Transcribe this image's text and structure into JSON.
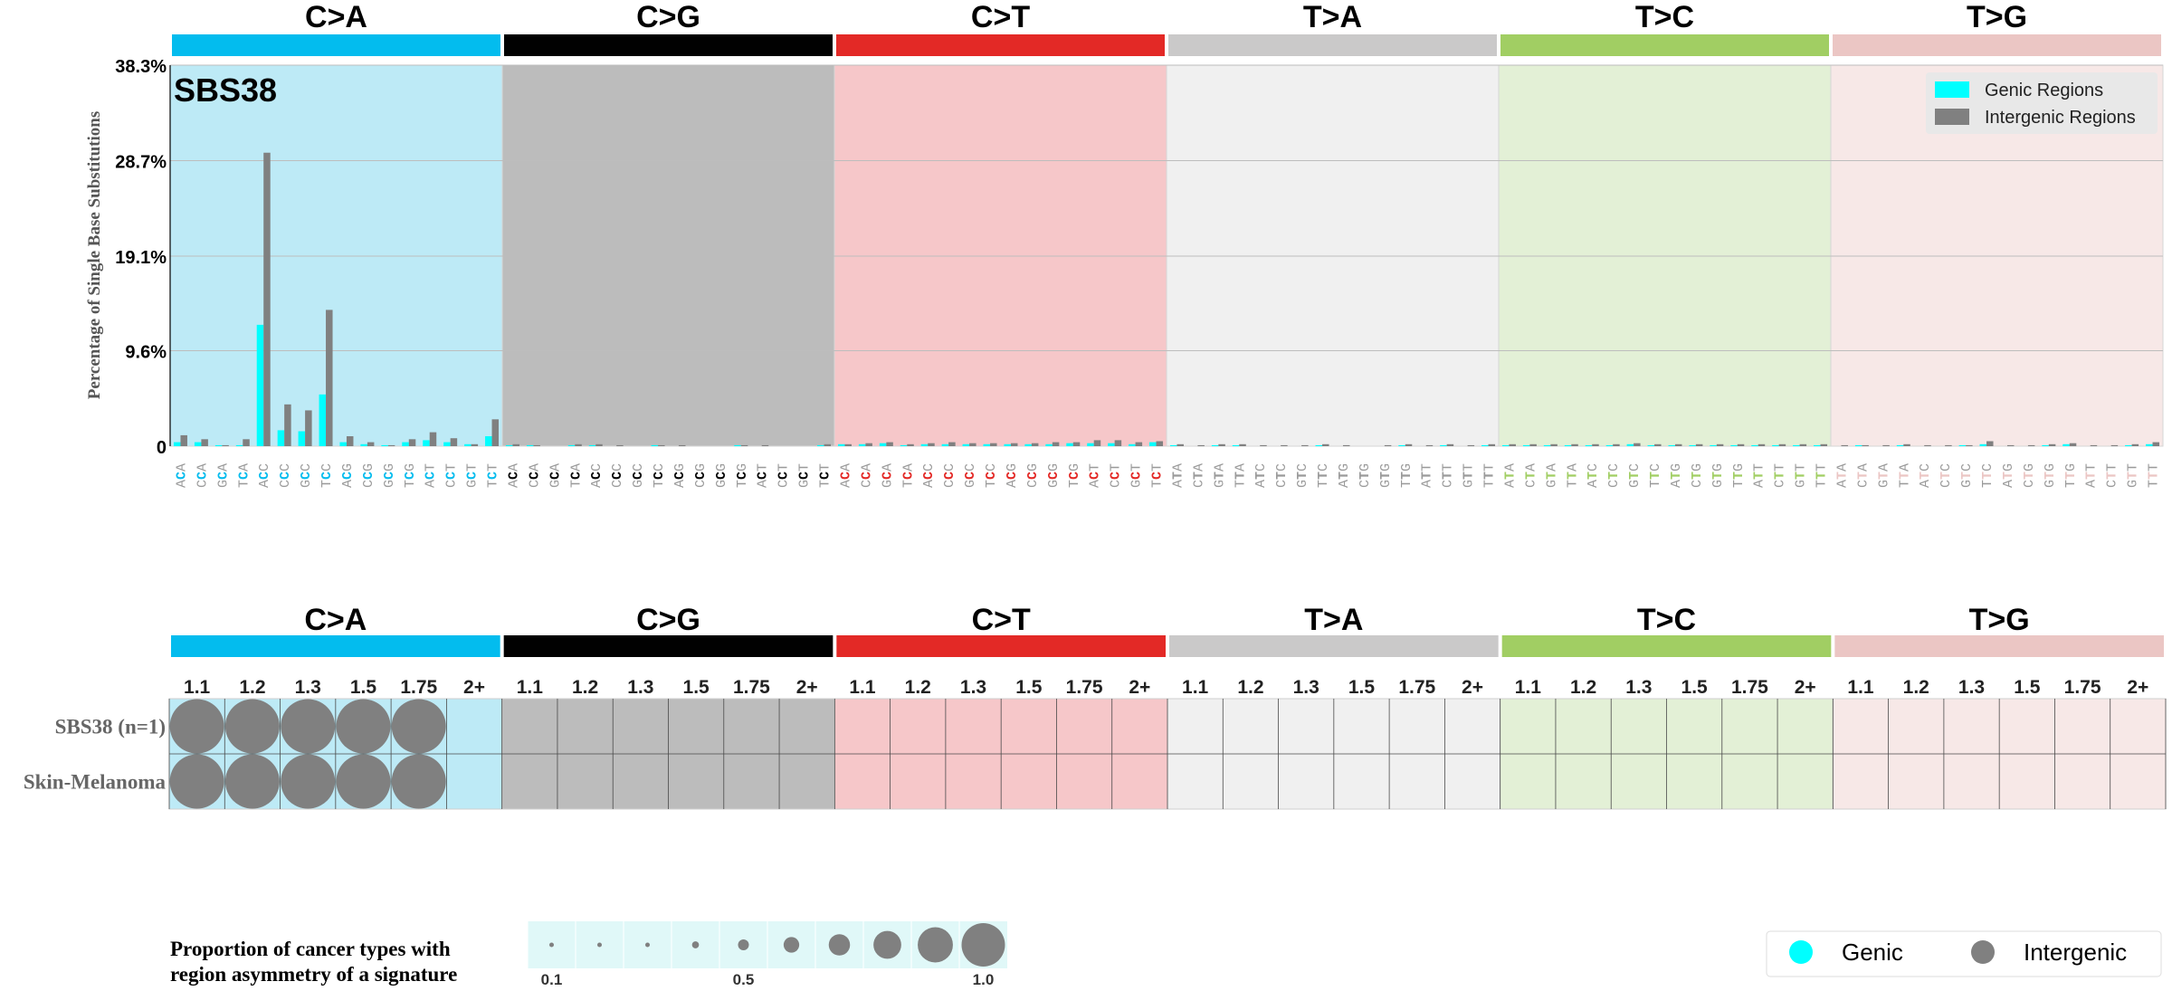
{
  "chart_data": [
    {
      "type": "bar",
      "title": "SBS38",
      "ylabel": "Percentage of Single Base Substitutions",
      "ylim": [
        0,
        38.3
      ],
      "ytick_labels": [
        "0",
        "9.6%",
        "19.1%",
        "28.7%",
        "38.3%"
      ],
      "ytick_values": [
        0,
        9.6,
        19.1,
        28.7,
        38.3
      ],
      "grid": true,
      "legend_position": "top-right",
      "mutation_types": [
        "C>A",
        "C>G",
        "C>T",
        "T>A",
        "T>C",
        "T>G"
      ],
      "mutation_colors": [
        "#03bcee",
        "#010101",
        "#e32926",
        "#cac9c9",
        "#a1ce63",
        "#ebc6c4"
      ],
      "panel_backgrounds": [
        "#bdeaf6",
        "#bcbcbc",
        "#f6c7c9",
        "#f0f0f0",
        "#e3f0d6",
        "#f7e8e7"
      ],
      "context_prefixes": [
        "AA",
        "AC",
        "AG",
        "AT",
        "CA",
        "CC",
        "CG",
        "CT",
        "GA",
        "GC",
        "GG",
        "GT",
        "TA",
        "TC",
        "TG",
        "TT"
      ],
      "series": [
        {
          "name": "Genic Regions",
          "color": "#00ffff",
          "values": [
            0.4,
            0.4,
            0.1,
            0.1,
            12.2,
            1.6,
            1.5,
            5.2,
            0.4,
            0.2,
            0.1,
            0.4,
            0.6,
            0.4,
            0.2,
            1.0,
            0.1,
            0.1,
            0.0,
            0.1,
            0.1,
            0.0,
            0.0,
            0.1,
            0.0,
            0.0,
            0.0,
            0.1,
            0.0,
            0.0,
            0.0,
            0.1,
            0.2,
            0.2,
            0.3,
            0.1,
            0.2,
            0.2,
            0.2,
            0.2,
            0.2,
            0.2,
            0.2,
            0.3,
            0.3,
            0.3,
            0.2,
            0.4,
            0.1,
            0.0,
            0.1,
            0.1,
            0.0,
            0.0,
            0.0,
            0.1,
            0.0,
            0.0,
            0.0,
            0.1,
            0.0,
            0.1,
            0.0,
            0.1,
            0.1,
            0.1,
            0.1,
            0.1,
            0.1,
            0.1,
            0.2,
            0.1,
            0.1,
            0.1,
            0.1,
            0.1,
            0.1,
            0.1,
            0.1,
            0.1,
            0.0,
            0.1,
            0.0,
            0.1,
            0.0,
            0.0,
            0.1,
            0.2,
            0.0,
            0.0,
            0.1,
            0.2,
            0.0,
            0.0,
            0.1,
            0.2
          ]
        },
        {
          "name": "Intergenic Regions",
          "color": "#808080",
          "values": [
            1.1,
            0.7,
            0.1,
            0.7,
            29.5,
            4.2,
            3.6,
            13.7,
            1.0,
            0.4,
            0.1,
            0.7,
            1.4,
            0.8,
            0.2,
            2.7,
            0.2,
            0.1,
            0.0,
            0.2,
            0.2,
            0.1,
            0.0,
            0.1,
            0.1,
            0.0,
            0.0,
            0.1,
            0.1,
            0.0,
            0.0,
            0.2,
            0.2,
            0.3,
            0.4,
            0.2,
            0.3,
            0.4,
            0.3,
            0.3,
            0.3,
            0.3,
            0.4,
            0.4,
            0.6,
            0.6,
            0.4,
            0.5,
            0.2,
            0.1,
            0.2,
            0.2,
            0.1,
            0.1,
            0.1,
            0.2,
            0.1,
            0.0,
            0.1,
            0.2,
            0.1,
            0.2,
            0.1,
            0.2,
            0.2,
            0.2,
            0.2,
            0.2,
            0.2,
            0.2,
            0.3,
            0.2,
            0.2,
            0.2,
            0.2,
            0.2,
            0.2,
            0.2,
            0.2,
            0.2,
            0.1,
            0.1,
            0.1,
            0.2,
            0.1,
            0.1,
            0.1,
            0.5,
            0.1,
            0.1,
            0.2,
            0.3,
            0.1,
            0.1,
            0.2,
            0.4
          ]
        }
      ]
    },
    {
      "type": "heatmap",
      "mutation_types": [
        "C>A",
        "C>G",
        "C>T",
        "T>A",
        "T>C",
        "T>G"
      ],
      "fold_labels": [
        "1.1",
        "1.2",
        "1.3",
        "1.5",
        "1.75",
        "2+"
      ],
      "rows": [
        {
          "label": "SBS38 (n=1)",
          "circles": [
            {
              "mutation": "C>A",
              "fold": "1.1",
              "proportion": 1.0,
              "region": "Intergenic"
            },
            {
              "mutation": "C>A",
              "fold": "1.2",
              "proportion": 1.0,
              "region": "Intergenic"
            },
            {
              "mutation": "C>A",
              "fold": "1.3",
              "proportion": 1.0,
              "region": "Intergenic"
            },
            {
              "mutation": "C>A",
              "fold": "1.5",
              "proportion": 1.0,
              "region": "Intergenic"
            },
            {
              "mutation": "C>A",
              "fold": "1.75",
              "proportion": 1.0,
              "region": "Intergenic"
            }
          ]
        },
        {
          "label": "Skin-Melanoma",
          "circles": [
            {
              "mutation": "C>A",
              "fold": "1.1",
              "proportion": 1.0,
              "region": "Intergenic"
            },
            {
              "mutation": "C>A",
              "fold": "1.2",
              "proportion": 1.0,
              "region": "Intergenic"
            },
            {
              "mutation": "C>A",
              "fold": "1.3",
              "proportion": 1.0,
              "region": "Intergenic"
            },
            {
              "mutation": "C>A",
              "fold": "1.5",
              "proportion": 1.0,
              "region": "Intergenic"
            },
            {
              "mutation": "C>A",
              "fold": "1.75",
              "proportion": 1.0,
              "region": "Intergenic"
            }
          ]
        }
      ],
      "size_legend": {
        "title_lines": [
          "Proportion of cancer types with",
          "region asymmetry of a signature"
        ],
        "values": [
          0.1,
          0.2,
          0.3,
          0.4,
          0.5,
          0.6,
          0.7,
          0.8,
          0.9,
          1.0
        ],
        "tick_labels": [
          "0.1",
          "0.5",
          "1.0"
        ]
      },
      "color_legend": [
        {
          "label": "Genic",
          "color": "#00ffff"
        },
        {
          "label": "Intergenic",
          "color": "#808080"
        }
      ]
    }
  ]
}
